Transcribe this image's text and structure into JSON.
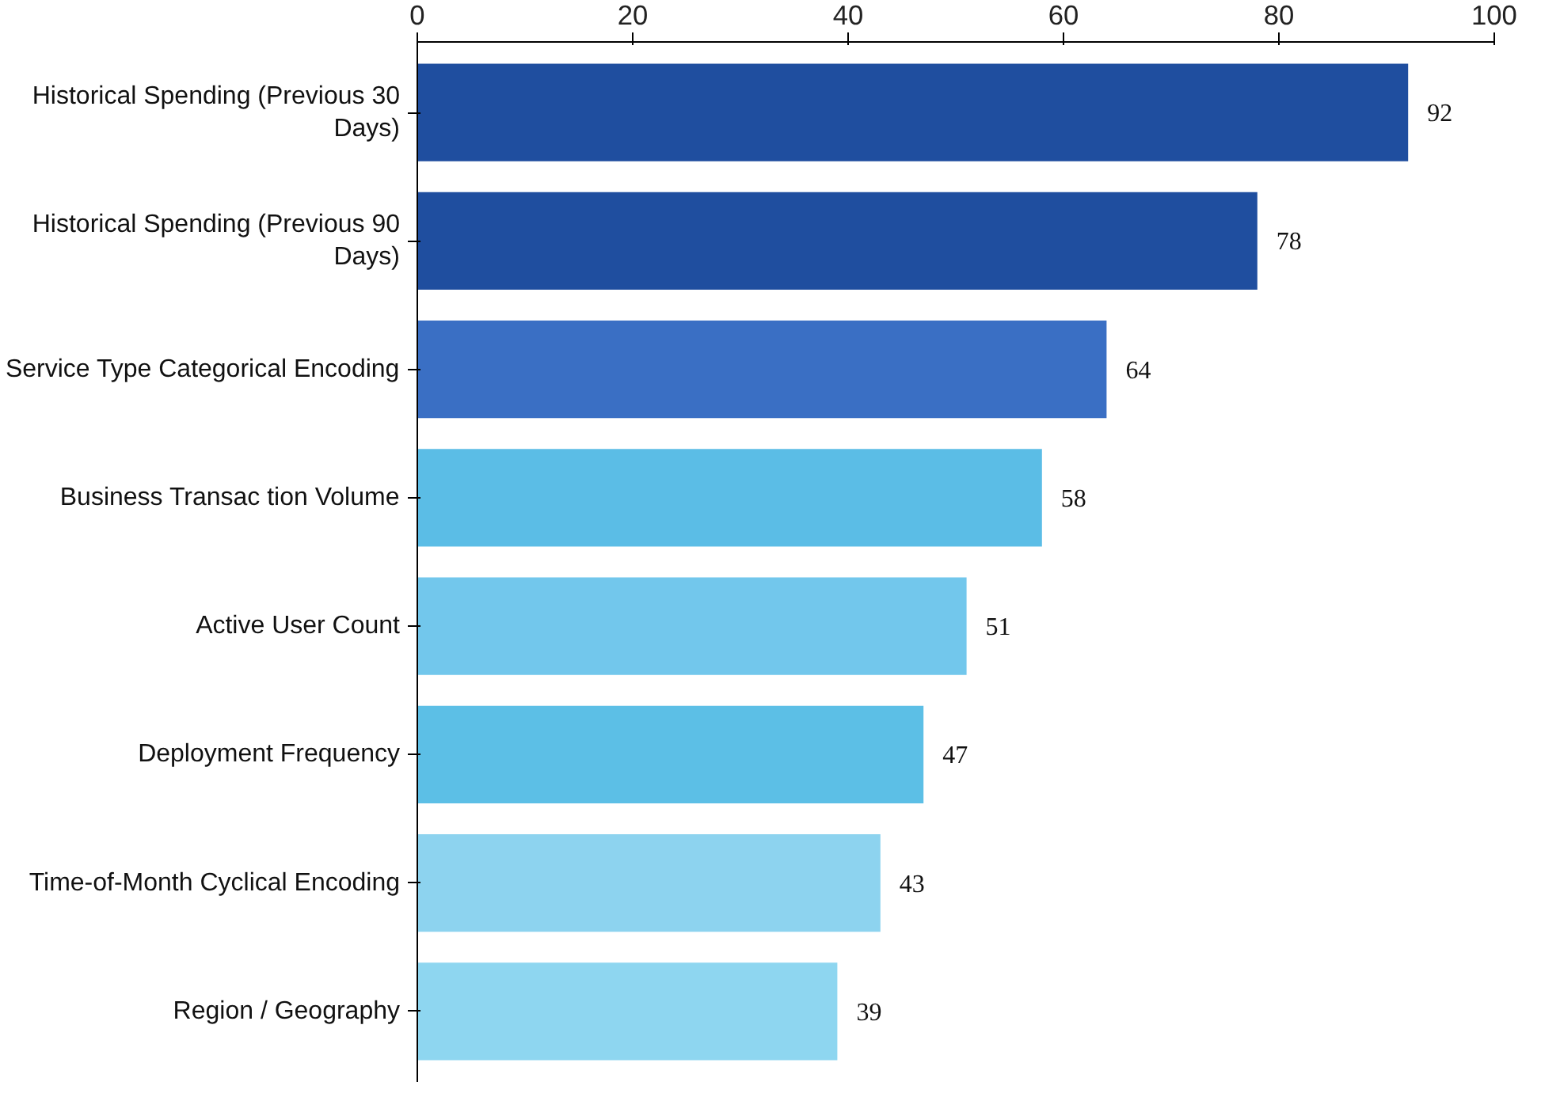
{
  "chart_data": {
    "type": "bar",
    "orientation": "horizontal",
    "categories": [
      "Historical Spending (Previous 30 Days)",
      "Historical Spending (Previous 90 Days)",
      "Service Type Categorical Encoding",
      "Business Transac tion Volume",
      "Active User Count",
      "Deployment Frequency",
      "Time-of-Month Cyclical Encoding",
      "Region / Geography"
    ],
    "values": [
      92,
      78,
      64,
      58,
      51,
      47,
      43,
      39
    ],
    "colors": [
      "#1f4e9f",
      "#1f4e9f",
      "#3a6fc4",
      "#5bbde6",
      "#72c7ec",
      "#5cbfe6",
      "#8dd3ef",
      "#8ed6f0"
    ],
    "xlim": [
      0,
      100
    ],
    "xticks": [
      0,
      20,
      40,
      60,
      80,
      100
    ],
    "data_labels": true,
    "grid": false
  }
}
